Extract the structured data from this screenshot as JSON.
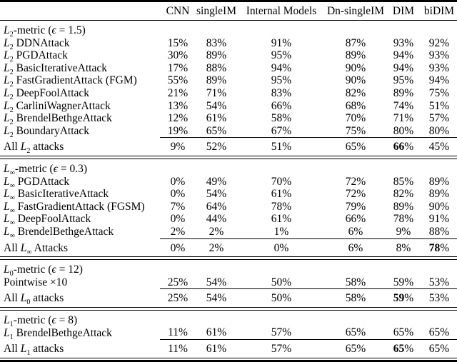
{
  "colors": {
    "background": "#ffffff",
    "text": "#000000",
    "rule": "#000000"
  },
  "table": {
    "unit": "%",
    "corner_label": "",
    "columns": [
      "CNN",
      "singleIM",
      "Internal Models",
      "Dn-singleIM",
      "DIM",
      "biDIM"
    ],
    "sections": [
      {
        "header": {
          "label": {
            "pre": "",
            "lsub": "2",
            "post": "-metric (ϵ = 1.5)"
          }
        },
        "rows": [
          {
            "label": {
              "pre": "",
              "lsub": "2",
              "post": " DDNAttack"
            },
            "values": [
              15,
              83,
              91,
              87,
              93,
              92
            ]
          },
          {
            "label": {
              "pre": "",
              "lsub": "2",
              "post": " PGDAttack"
            },
            "values": [
              30,
              89,
              95,
              89,
              94,
              93
            ]
          },
          {
            "label": {
              "pre": "",
              "lsub": "2",
              "post": " BasicIterativeAttack"
            },
            "values": [
              17,
              88,
              94,
              90,
              94,
              93
            ]
          },
          {
            "label": {
              "pre": "",
              "lsub": "2",
              "post": " FastGradientAttack (FGM)"
            },
            "values": [
              55,
              89,
              95,
              90,
              95,
              94
            ]
          },
          {
            "label": {
              "pre": "",
              "lsub": "2",
              "post": " DeepFoolAttack"
            },
            "values": [
              21,
              71,
              83,
              82,
              89,
              75
            ]
          },
          {
            "label": {
              "pre": "",
              "lsub": "2",
              "post": " CarliniWagnerAttack"
            },
            "values": [
              13,
              54,
              66,
              68,
              74,
              51
            ]
          },
          {
            "label": {
              "pre": "",
              "lsub": "2",
              "post": " BrendelBethgeAttack"
            },
            "values": [
              12,
              61,
              58,
              70,
              71,
              57
            ]
          },
          {
            "label": {
              "pre": "",
              "lsub": "2",
              "post": " BoundaryAttack"
            },
            "values": [
              19,
              65,
              67,
              75,
              80,
              80
            ]
          }
        ],
        "summary": {
          "label": {
            "pre": "All ",
            "lsub": "2",
            "post": " attacks"
          },
          "values": [
            9,
            52,
            51,
            65,
            66,
            45
          ],
          "bold_index": 4
        }
      },
      {
        "header": {
          "label": {
            "pre": "",
            "lsub": "∞",
            "post": "-metric (ϵ = 0.3)"
          }
        },
        "rows": [
          {
            "label": {
              "pre": "",
              "lsub": "∞",
              "post": " PGDAttack"
            },
            "values": [
              0,
              49,
              70,
              72,
              85,
              89
            ]
          },
          {
            "label": {
              "pre": "",
              "lsub": "∞",
              "post": " BasicIterativeAttack"
            },
            "values": [
              0,
              54,
              61,
              72,
              82,
              89
            ]
          },
          {
            "label": {
              "pre": "",
              "lsub": "∞",
              "post": " FastGradientAttack (FGSM)"
            },
            "values": [
              7,
              64,
              78,
              79,
              89,
              90
            ]
          },
          {
            "label": {
              "pre": "",
              "lsub": "∞",
              "post": " DeepFoolAttack"
            },
            "values": [
              0,
              44,
              61,
              66,
              78,
              91
            ]
          },
          {
            "label": {
              "pre": "",
              "lsub": "∞",
              "post": " BrendelBethgeAttack"
            },
            "values": [
              2,
              2,
              1,
              6,
              9,
              88
            ]
          }
        ],
        "summary": {
          "label": {
            "pre": "All ",
            "lsub": "∞",
            "post": " Attacks"
          },
          "values": [
            0,
            2,
            0,
            6,
            8,
            78
          ],
          "bold_index": 5
        }
      },
      {
        "header": {
          "label": {
            "pre": "",
            "lsub": "0",
            "post": "-metric (ϵ = 12)"
          }
        },
        "rows": [
          {
            "label": {
              "pre": "Pointwise ×10"
            },
            "values": [
              25,
              54,
              50,
              58,
              59,
              53
            ]
          }
        ],
        "summary": {
          "label": {
            "pre": "All ",
            "lsub": "0",
            "post": " attacks"
          },
          "values": [
            25,
            54,
            50,
            58,
            59,
            53
          ],
          "bold_index": 4
        }
      },
      {
        "header": {
          "label": {
            "pre": "",
            "lsub": "1",
            "post": "-metric (ϵ = 8)"
          }
        },
        "rows": [
          {
            "label": {
              "pre": "",
              "lsub": "1",
              "post": " BrendelBethgeAttack"
            },
            "values": [
              11,
              61,
              57,
              65,
              65,
              65
            ]
          }
        ],
        "summary": {
          "label": {
            "pre": "All ",
            "lsub": "1",
            "post": " attacks"
          },
          "values": [
            11,
            61,
            57,
            65,
            65,
            65
          ],
          "bold_index": 4
        }
      }
    ]
  }
}
